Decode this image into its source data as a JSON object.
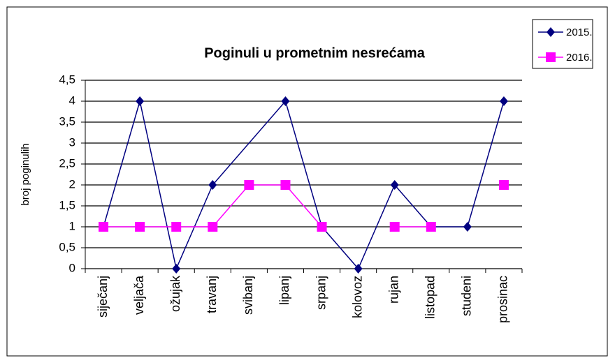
{
  "chart_data": {
    "type": "line",
    "title": "Poginuli u prometnim nesrećama",
    "y_label": "broj poginulih",
    "categories": [
      "siječanj",
      "veljača",
      "ožujak",
      "travanj",
      "svibanj",
      "lipanj",
      "srpanj",
      "kolovoz",
      "rujan",
      "listopad",
      "studeni",
      "prosinac"
    ],
    "series": [
      {
        "name": "2015.",
        "color": "#000080",
        "marker": "diamond",
        "connect_gaps": true,
        "values": [
          1,
          4,
          0,
          2,
          null,
          4,
          1,
          0,
          2,
          1,
          1,
          4
        ]
      },
      {
        "name": "2016.",
        "color": "#ff00ff",
        "marker": "square",
        "connect_gaps": false,
        "values": [
          1,
          1,
          1,
          1,
          2,
          2,
          1,
          null,
          1,
          1,
          null,
          2
        ]
      }
    ],
    "ylim": [
      0,
      4.5
    ],
    "yticks": [
      0,
      {
        "value": 0.5,
        "label": "0,5"
      },
      1,
      {
        "value": 1.5,
        "label": "1,5"
      },
      2,
      {
        "value": 2.5,
        "label": "2,5"
      },
      3,
      {
        "value": 3.5,
        "label": "3,5"
      },
      4,
      {
        "value": 4.5,
        "label": "4,5"
      }
    ],
    "grid": true,
    "legend": "top-right"
  }
}
